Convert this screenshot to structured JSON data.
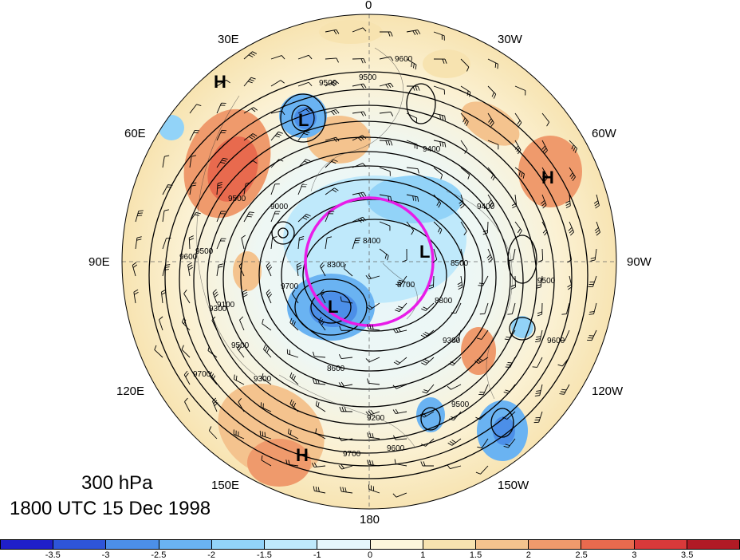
{
  "map": {
    "level": "300 hPa",
    "time": "1800 UTC 15 Dec 1998",
    "longitude_labels": {
      "n": "0",
      "nne": "30W",
      "nee": "60W",
      "e": "90W",
      "see": "120W",
      "sse": "150W",
      "s": "180",
      "ssw": "150E",
      "sww": "120E",
      "w": "90E",
      "nww": "60E",
      "nnw": "30E"
    },
    "pressure_centers": [
      {
        "label": "H",
        "name": "high-west-russia"
      },
      {
        "label": "L",
        "name": "low-scandinavia"
      },
      {
        "label": "H",
        "name": "high-north-atlantic"
      },
      {
        "label": "L",
        "name": "low-arctic-east"
      },
      {
        "label": "L",
        "name": "low-siberia"
      },
      {
        "label": "H",
        "name": "high-north-pacific"
      }
    ],
    "contour_labels": [
      "9600",
      "9500",
      "9500",
      "9400",
      "9500",
      "9600",
      "9500",
      "9000",
      "9700",
      "9300",
      "9100",
      "9500",
      "9700",
      "8600",
      "9200",
      "9300",
      "9500",
      "9600",
      "9700",
      "8800",
      "9300",
      "8500",
      "9500",
      "9600",
      "9400",
      "8400",
      "8300",
      "8700"
    ],
    "colorbar": {
      "colors": [
        "#1f1fc9",
        "#2e55d9",
        "#4c8fe8",
        "#6ab3f2",
        "#92d3f8",
        "#bfe9fb",
        "#e6f6fb",
        "#fcf6dc",
        "#f7e3b0",
        "#f4c38e",
        "#ef9a6c",
        "#e86a4e",
        "#d9393a",
        "#b11a25"
      ],
      "ticks": [
        "-3.5",
        "-3",
        "-2.5",
        "-2",
        "-1.5",
        "-1",
        "0",
        "1",
        "1.5",
        "2",
        "2.5",
        "3",
        "3.5"
      ]
    },
    "highlight_circle_color": "#e81ce8"
  }
}
